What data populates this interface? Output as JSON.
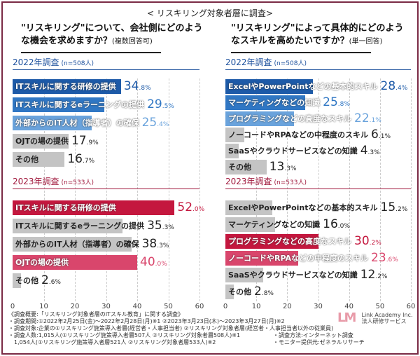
{
  "supertitle": "< リスキリング対象者層に調査>",
  "chart_data": [
    {
      "type": "bar",
      "orientation": "horizontal",
      "question": "\"リスキリング\"について、会社側にどのような機会を求めますか？",
      "note": "(複数回答可)",
      "xlim": [
        0,
        60
      ],
      "xticks": [
        "0",
        "10",
        "20",
        "30",
        "40",
        "50",
        "60"
      ],
      "grid": true,
      "unit": "%",
      "groups": [
        {
          "label": "2022年調査",
          "n": "(n=508人)",
          "color": "#1b4f9c",
          "categories": [
            "ITスキルに関する研修の提供",
            "ITスキルに関するeラーニングの提供",
            "外部からのIT人材（指導者）の確保",
            "OJTの場の提供",
            "その他"
          ],
          "values": [
            34.8,
            29.5,
            25.4,
            17.9,
            16.7
          ],
          "colors": [
            "#1d5aa8",
            "#3077c4",
            "#6aa3dc",
            "#c4c4c4",
            "#c4c4c4"
          ]
        },
        {
          "label": "2023年調査",
          "n": "(n=533人)",
          "color": "#a0183c",
          "categories": [
            "ITスキルに関する研修の提供",
            "ITスキルに関するeラーニングの提供",
            "外部からのIT人材（指導者）の確保",
            "OJTの場の提供",
            "その他"
          ],
          "values": [
            52.0,
            35.3,
            38.3,
            40.0,
            2.6
          ],
          "colors": [
            "#c4173e",
            "#c4c4c4",
            "#c4c4c4",
            "#d9466c",
            "#c4c4c4"
          ]
        }
      ]
    },
    {
      "type": "bar",
      "orientation": "horizontal",
      "question": "\"リスキリング\"によって具体的にどのようなスキルを高めたいですか？",
      "note": "(単一回答)",
      "xlim": [
        0,
        60
      ],
      "xticks": [
        "0",
        "10",
        "20",
        "30",
        "40",
        "50",
        "60"
      ],
      "grid": true,
      "unit": "%",
      "groups": [
        {
          "label": "2022年調査",
          "n": "(n=508人)",
          "color": "#1b4f9c",
          "categories": [
            "ExcelやPowerPointなどの基本的スキル",
            "マーケティングなどの知識",
            "プログラミングなどの高度なスキル",
            "ノーコードやRPAなどの中程度のスキル",
            "SaaSやクラウドサービスなどの知識",
            "その他"
          ],
          "values": [
            28.4,
            25.8,
            22.1,
            6.1,
            4.3,
            13.3
          ],
          "colors": [
            "#1d5aa8",
            "#3077c4",
            "#6aa3dc",
            "#c4c4c4",
            "#c4c4c4",
            "#c4c4c4"
          ]
        },
        {
          "label": "2023年調査",
          "n": "(n=533人)",
          "color": "#a0183c",
          "categories": [
            "ExcelやPowerPointなどの基本的スキル",
            "マーケティングなどの知識",
            "プログラミングなどの高度なスキル",
            "ノーコードやRPAなどの中程度のスキル",
            "SaaSやクラウドサービスなどの知識",
            "その他"
          ],
          "values": [
            15.2,
            16.0,
            30.2,
            23.6,
            12.2,
            2.8
          ],
          "colors": [
            "#c4c4c4",
            "#c4c4c4",
            "#c4173e",
            "#d9466c",
            "#c4c4c4",
            "#c4c4c4"
          ]
        }
      ]
    }
  ],
  "footer": {
    "lines": [
      "《調査概要:「リスキリング対象者層のITスキル教育」に関する調査》",
      "・調査期間:①2022年2月25日(金)～2022年2月28日(月)※1 ②2023年3月23日(木)～2023年3月27日(月)※2",
      "・調査対象:企業の①リスキリング施策導入者層(経営者・人事担当者) ②リスキリング対象者層(経営者・人事担当者以外の従業員)",
      "・調査人数:1,015人(①リスキリング施策導入者層507人 ②リスキリング対象者層508人)※1",
      "　1,054人(①リスキリング施策導入者層521人 ②リスキリング対象者層533人)※2"
    ],
    "method": "・調査方法:インターネット調査",
    "monitor": "・モニター提供元:ゼネラルリサーチ"
  },
  "logo": {
    "mark": "LM",
    "name": "Link Academy Inc.",
    "sub": "法人研修サービス"
  }
}
